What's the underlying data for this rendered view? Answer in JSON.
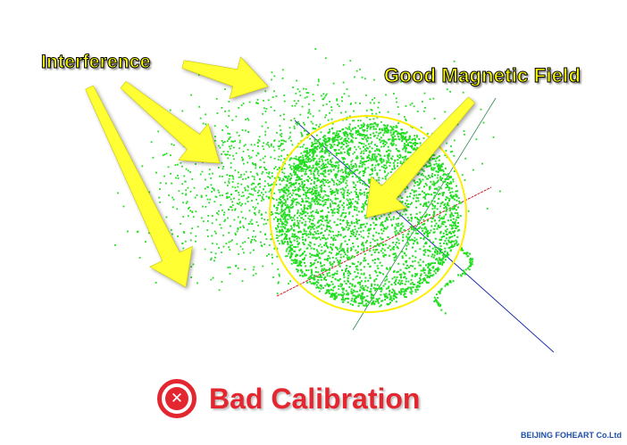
{
  "labels": {
    "interference": "Interference",
    "good_field": "Good Magnetic Field",
    "bad_calibration": "Bad Calibration",
    "footer": "BEIJING FOHEART Co.Ltd"
  },
  "icons": {
    "bad": "error-x-icon"
  },
  "colors": {
    "points": "#22dd22",
    "callout_text": "#ffff00",
    "arrow": "#ffff33",
    "circle": "#ffee00",
    "bad": "#e3262f",
    "axis_x": "#cc2222",
    "axis_y": "#2a8a4a",
    "axis_z": "#2233aa"
  }
}
